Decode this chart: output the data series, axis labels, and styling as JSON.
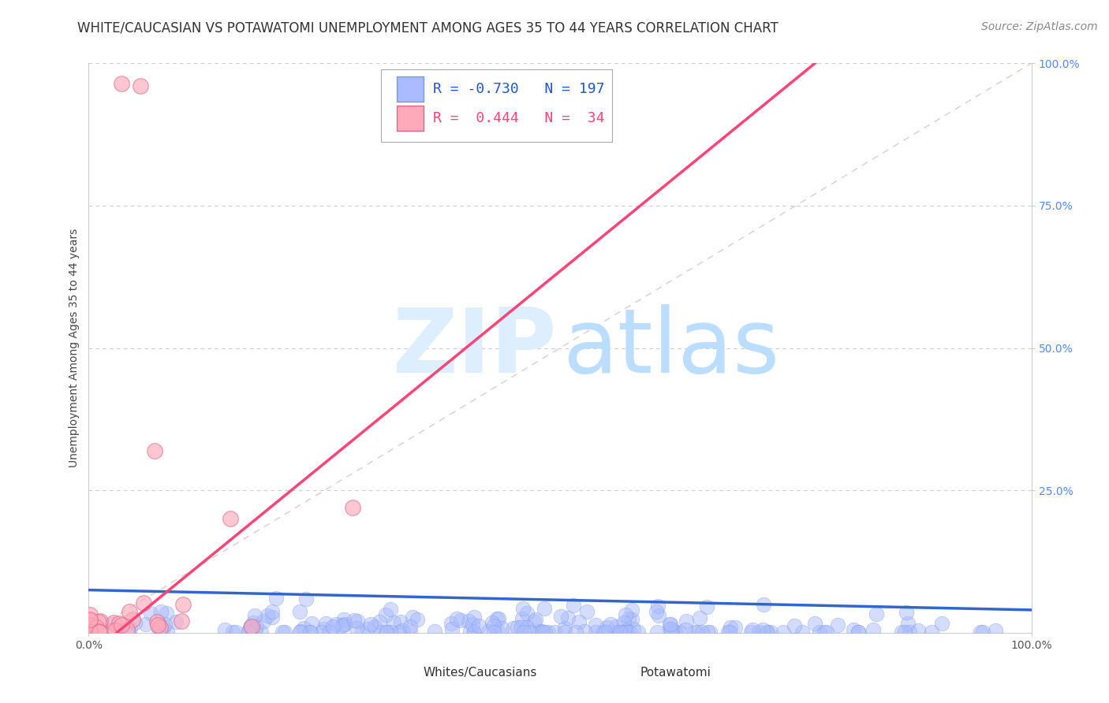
{
  "title": "WHITE/CAUCASIAN VS POTAWATOMI UNEMPLOYMENT AMONG AGES 35 TO 44 YEARS CORRELATION CHART",
  "source": "Source: ZipAtlas.com",
  "ylabel": "Unemployment Among Ages 35 to 44 years",
  "xlim": [
    0,
    1
  ],
  "ylim": [
    0,
    1
  ],
  "xtick_positions": [
    0.0,
    1.0
  ],
  "xtick_labels": [
    "0.0%",
    "100.0%"
  ],
  "ytick_positions": [
    0.25,
    0.5,
    0.75,
    1.0
  ],
  "ytick_labels": [
    "25.0%",
    "50.0%",
    "75.0%",
    "100.0%"
  ],
  "N_blue": 197,
  "N_pink": 34,
  "R_blue": -0.73,
  "R_pink": 0.444,
  "blue_scatter_color": "#aabbff",
  "blue_edge_color": "#7799dd",
  "blue_line_color": "#3366cc",
  "pink_scatter_color": "#ffaabb",
  "pink_edge_color": "#dd6688",
  "pink_line_color": "#ff4477",
  "diagonal_color": "#ddcccc",
  "grid_color": "#cccccc",
  "background_color": "#ffffff",
  "watermark_zip_color": "#ddeeff",
  "watermark_atlas_color": "#bbddff",
  "title_fontsize": 12,
  "axis_label_fontsize": 10,
  "tick_fontsize": 10,
  "legend_fontsize": 13,
  "source_fontsize": 10,
  "legend_R_blue_color": "#2255cc",
  "legend_R_pink_color": "#ff4477",
  "ytick_color": "#5588ff"
}
